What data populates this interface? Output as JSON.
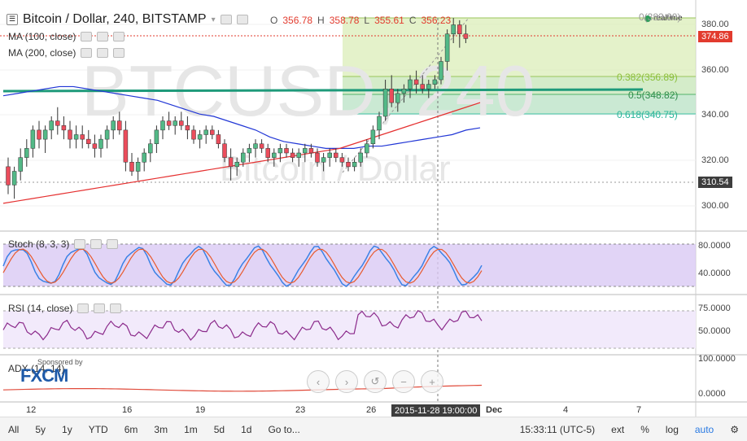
{
  "header": {
    "title": "Bitcoin / Dollar, 240, BITSTAMP",
    "ohlc": {
      "o_label": "O",
      "o": "356.78",
      "h_label": "H",
      "h": "358.78",
      "l_label": "L",
      "l": "355.61",
      "c_label": "C",
      "c": "356.23"
    }
  },
  "ma": [
    {
      "label": "MA (100, close)"
    },
    {
      "label": "MA (200, close)"
    }
  ],
  "watermark": {
    "symbol": "BTCUSD, 240",
    "name": "Bitcoin / Dollar"
  },
  "price_axis": {
    "labels": [
      "380.00",
      "360.00",
      "340.00",
      "320.00",
      "300.00"
    ]
  },
  "price_tags": {
    "current": "374.86",
    "low": "310.54"
  },
  "fib": {
    "top": "0(383.00)",
    "f382": "0.382(356.89)",
    "f5": "0.5(348.82)",
    "f618": "0.618(340.75)"
  },
  "realtime_label": "realtime",
  "stoch": {
    "label": "Stoch (8, 3, 3)",
    "axis": [
      "80.0000",
      "40.0000"
    ]
  },
  "rsi": {
    "label": "RSI (14, close)",
    "axis": [
      "75.0000",
      "50.0000"
    ]
  },
  "adx": {
    "label": "ADX (14, 14)",
    "axis": [
      "100.0000",
      "0.0000"
    ]
  },
  "sponsor": {
    "text": "Sponsored by",
    "brand": "FXCM"
  },
  "date_axis": {
    "labels": [
      "12",
      "16",
      "19",
      "23",
      "26",
      "Dec",
      "4",
      "7"
    ],
    "crosshair": "2015-11-28 19:00:00"
  },
  "bottom_bar": {
    "ranges": [
      "All",
      "5y",
      "1y",
      "YTD",
      "6m",
      "3m",
      "1m",
      "5d",
      "1d",
      "Go to..."
    ],
    "time": "15:33:11 (UTC-5)",
    "right": [
      "ext",
      "%",
      "log",
      "auto"
    ]
  },
  "colors": {
    "up": "#53b987",
    "down": "#eb4d5c",
    "ma100": "#2237d6",
    "ma200": "#e53030",
    "trend": "#1e9a7a",
    "fib_zone": "#d8edb3",
    "stoch_bg": "#d9c9f4",
    "rsi_bg": "#f2eafb",
    "current_tag": "#e23b2e",
    "low_tag": "#3d3d3d"
  },
  "chart_data": {
    "type": "candlestick",
    "title": "Bitcoin / Dollar, 240, BITSTAMP",
    "ylim": [
      292,
      388
    ],
    "candles": [
      [
        318,
        322,
        306,
        310
      ],
      [
        310,
        318,
        304,
        316
      ],
      [
        316,
        326,
        312,
        322
      ],
      [
        322,
        330,
        318,
        326
      ],
      [
        326,
        336,
        322,
        334
      ],
      [
        334,
        338,
        326,
        330
      ],
      [
        330,
        336,
        324,
        334
      ],
      [
        334,
        340,
        330,
        338
      ],
      [
        338,
        344,
        332,
        336
      ],
      [
        336,
        340,
        330,
        334
      ],
      [
        334,
        338,
        326,
        330
      ],
      [
        330,
        336,
        326,
        332
      ],
      [
        332,
        336,
        326,
        330
      ],
      [
        330,
        334,
        326,
        328
      ],
      [
        328,
        332,
        322,
        326
      ],
      [
        326,
        332,
        322,
        330
      ],
      [
        330,
        336,
        326,
        334
      ],
      [
        334,
        340,
        330,
        338
      ],
      [
        338,
        342,
        332,
        334
      ],
      [
        334,
        338,
        316,
        320
      ],
      [
        320,
        324,
        314,
        316
      ],
      [
        316,
        322,
        312,
        320
      ],
      [
        320,
        326,
        316,
        324
      ],
      [
        324,
        330,
        320,
        328
      ],
      [
        328,
        336,
        324,
        334
      ],
      [
        334,
        340,
        330,
        338
      ],
      [
        338,
        342,
        334,
        336
      ],
      [
        336,
        340,
        332,
        338
      ],
      [
        338,
        342,
        334,
        336
      ],
      [
        336,
        340,
        330,
        334
      ],
      [
        334,
        336,
        328,
        330
      ],
      [
        330,
        334,
        326,
        332
      ],
      [
        332,
        336,
        328,
        334
      ],
      [
        334,
        336,
        330,
        332
      ],
      [
        332,
        334,
        326,
        328
      ],
      [
        328,
        330,
        320,
        322
      ],
      [
        322,
        326,
        312,
        318
      ],
      [
        318,
        322,
        314,
        320
      ],
      [
        320,
        326,
        318,
        324
      ],
      [
        324,
        328,
        320,
        326
      ],
      [
        326,
        330,
        322,
        328
      ],
      [
        328,
        330,
        324,
        326
      ],
      [
        326,
        328,
        320,
        322
      ],
      [
        322,
        326,
        318,
        324
      ],
      [
        324,
        328,
        320,
        326
      ],
      [
        326,
        328,
        322,
        324
      ],
      [
        324,
        326,
        320,
        322
      ],
      [
        322,
        326,
        318,
        324
      ],
      [
        324,
        328,
        320,
        326
      ],
      [
        326,
        328,
        322,
        324
      ],
      [
        324,
        326,
        318,
        320
      ],
      [
        320,
        324,
        316,
        322
      ],
      [
        322,
        326,
        318,
        324
      ],
      [
        324,
        326,
        320,
        322
      ],
      [
        322,
        324,
        318,
        320
      ],
      [
        320,
        322,
        316,
        318
      ],
      [
        318,
        322,
        316,
        320
      ],
      [
        320,
        326,
        318,
        324
      ],
      [
        324,
        330,
        322,
        328
      ],
      [
        328,
        336,
        326,
        334
      ],
      [
        334,
        342,
        330,
        340
      ],
      [
        340,
        356,
        338,
        352
      ],
      [
        352,
        358,
        344,
        346
      ],
      [
        346,
        352,
        342,
        350
      ],
      [
        350,
        354,
        346,
        352
      ],
      [
        352,
        358,
        348,
        356
      ],
      [
        356,
        360,
        350,
        354
      ],
      [
        354,
        358,
        350,
        352
      ],
      [
        352,
        356,
        348,
        354
      ],
      [
        354,
        358,
        352,
        356
      ],
      [
        356,
        366,
        354,
        364
      ],
      [
        364,
        378,
        360,
        376
      ],
      [
        376,
        383,
        372,
        380
      ],
      [
        380,
        382,
        370,
        376
      ],
      [
        376,
        380,
        372,
        374
      ]
    ],
    "ma100": [
      349,
      350,
      351,
      352,
      353,
      353,
      352,
      351,
      350,
      349,
      348,
      347,
      345,
      343,
      341,
      340,
      338,
      336,
      334,
      331,
      329,
      328,
      327,
      326,
      326,
      326,
      327,
      327,
      328,
      329,
      330,
      331,
      332,
      334,
      335
    ],
    "ma200": [
      302,
      303,
      304,
      305,
      306,
      307,
      308,
      309,
      310,
      311,
      312,
      313,
      314,
      315,
      316,
      317,
      318,
      319,
      320,
      321,
      322,
      323,
      324,
      325,
      326,
      328,
      330,
      332,
      334,
      336,
      338,
      340,
      342,
      344,
      346
    ],
    "horizontal_line": 350
  }
}
